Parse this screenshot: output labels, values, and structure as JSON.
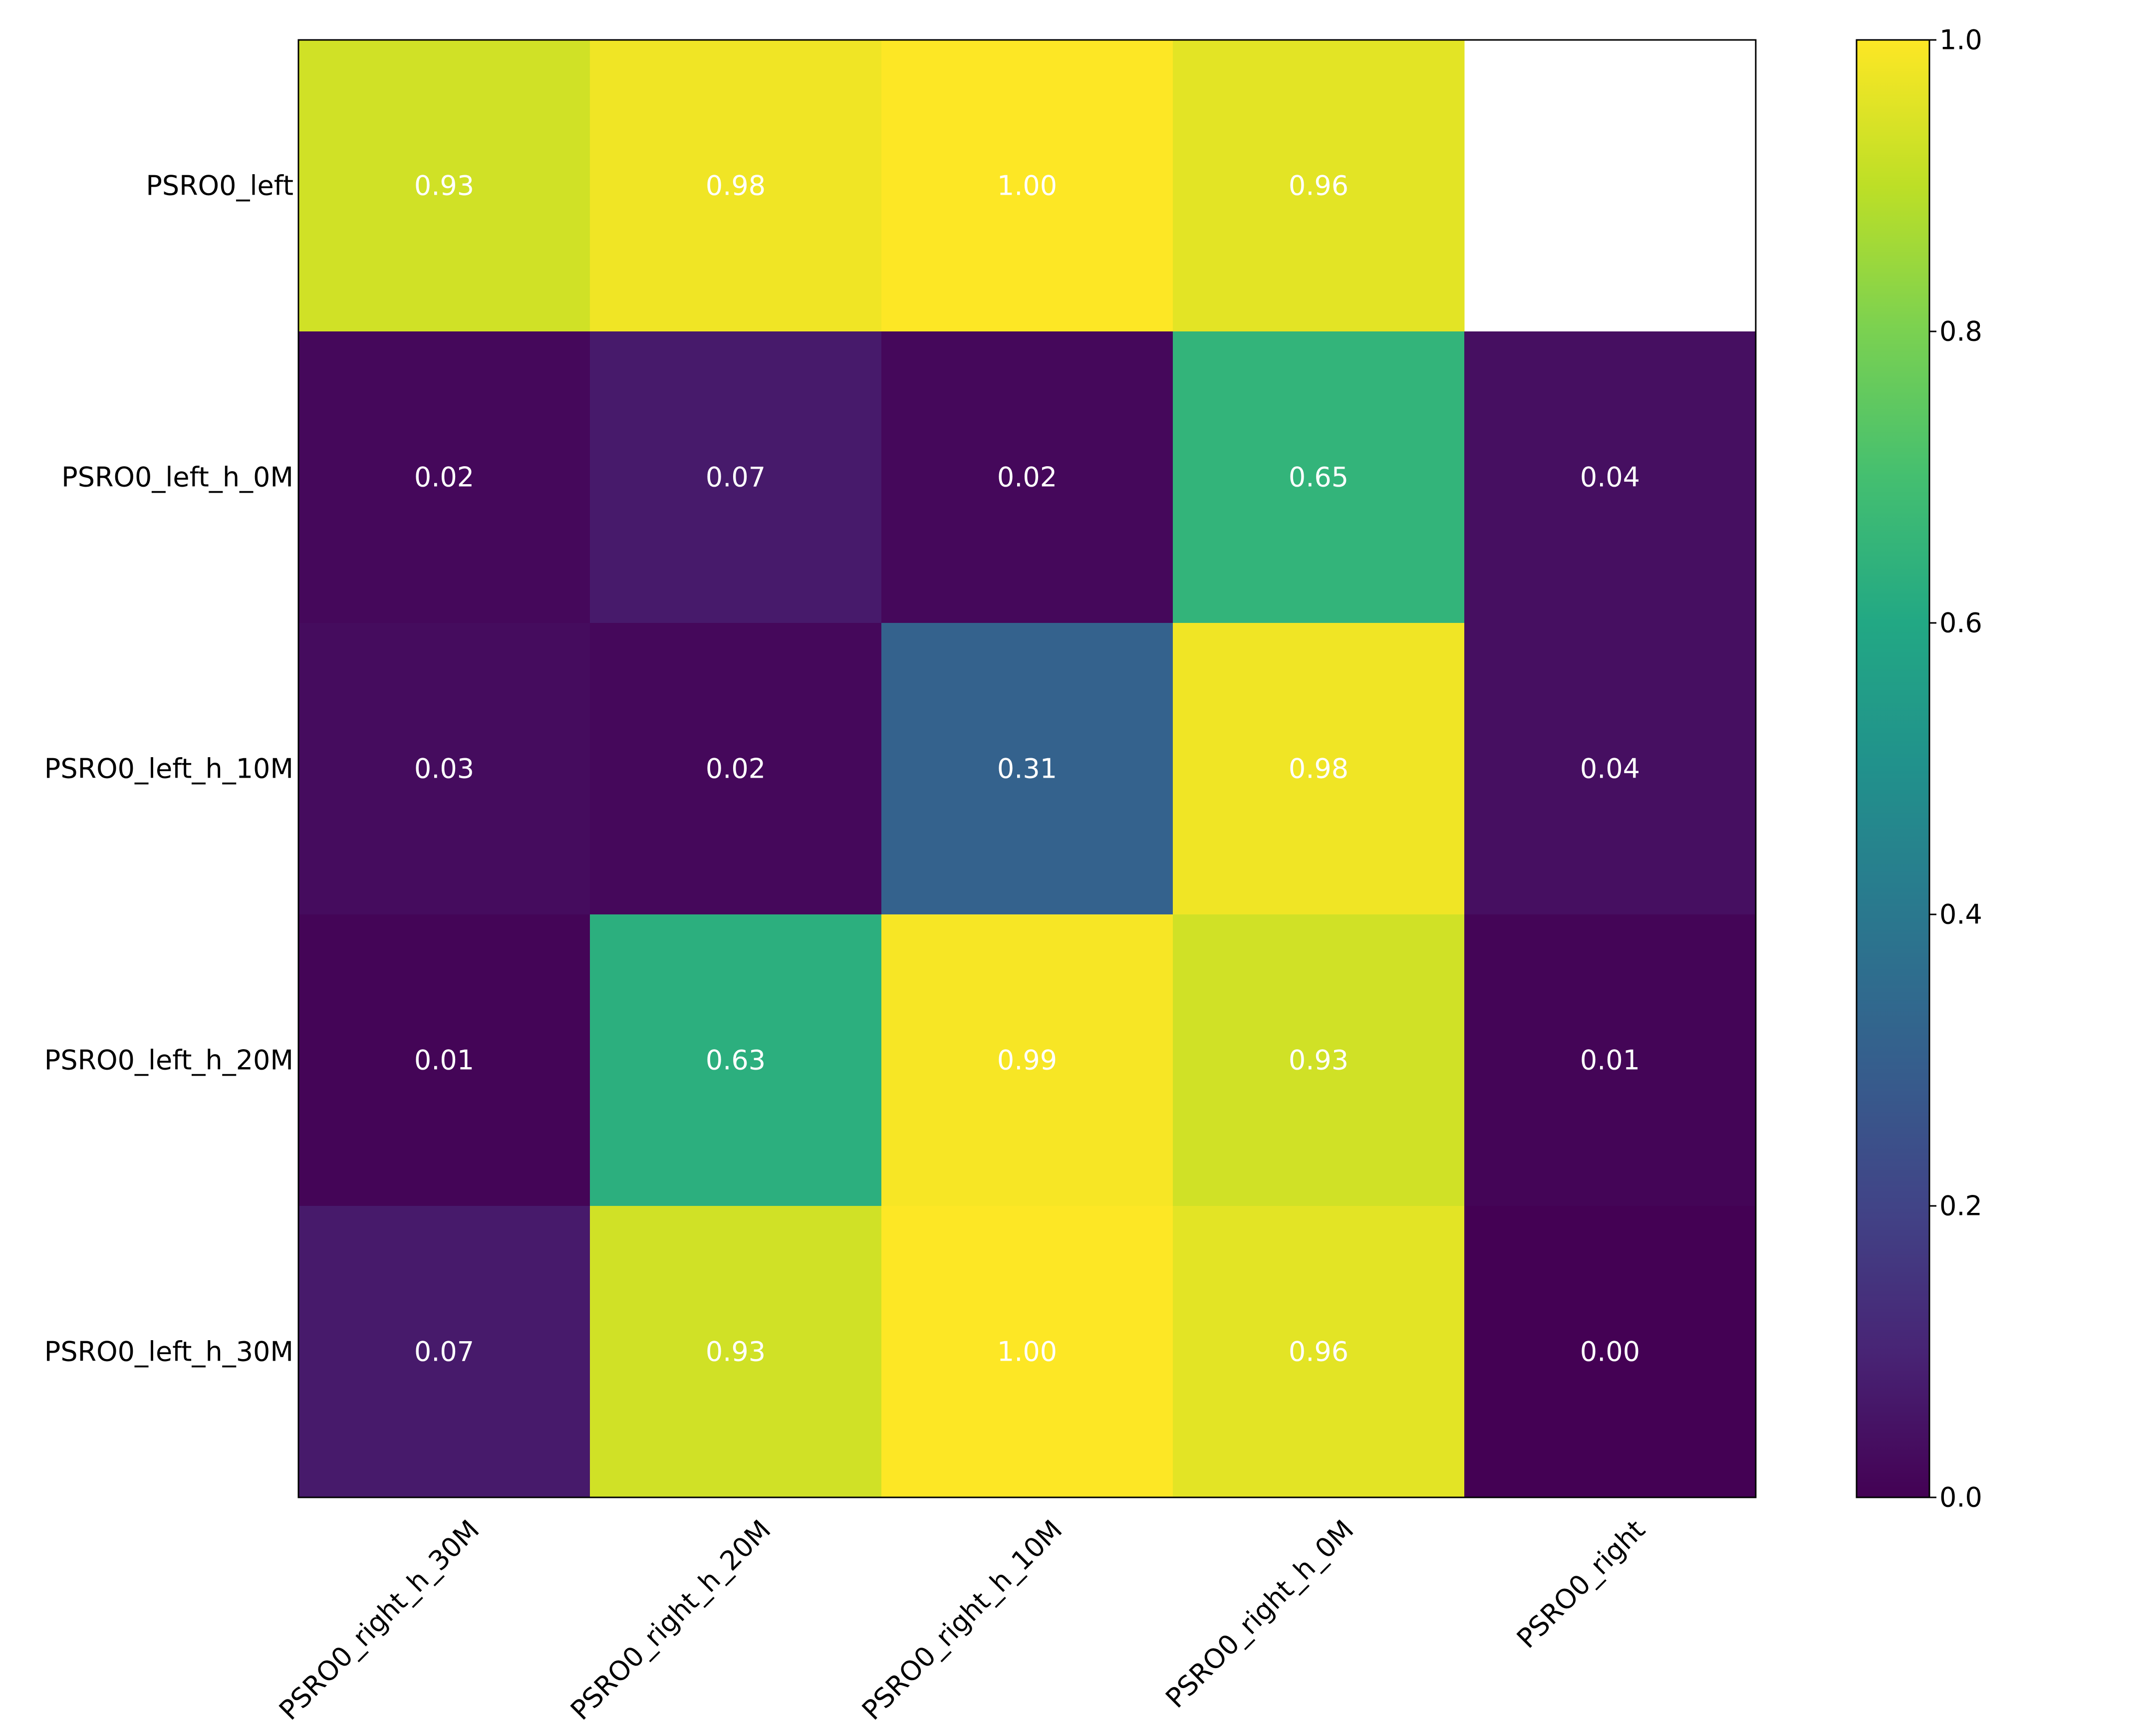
{
  "chart_data": {
    "type": "heatmap",
    "rows": [
      "PSRO0_left",
      "PSRO0_left_h_0M",
      "PSRO0_left_h_10M",
      "PSRO0_left_h_20M",
      "PSRO0_left_h_30M"
    ],
    "columns": [
      "PSRO0_right_h_30M",
      "PSRO0_right_h_20M",
      "PSRO0_right_h_10M",
      "PSRO0_right_h_0M",
      "PSRO0_right"
    ],
    "values": [
      [
        0.93,
        0.98,
        1.0,
        0.96,
        null
      ],
      [
        0.02,
        0.07,
        0.02,
        0.65,
        0.04
      ],
      [
        0.03,
        0.02,
        0.31,
        0.98,
        0.04
      ],
      [
        0.01,
        0.63,
        0.99,
        0.93,
        0.01
      ],
      [
        0.07,
        0.93,
        1.0,
        0.96,
        0.0
      ]
    ],
    "value_format": "0.00",
    "colormap": "viridis",
    "colorbar": {
      "range": [
        0,
        1
      ],
      "ticks": [
        0.0,
        0.2,
        0.4,
        0.6,
        0.8,
        1.0
      ],
      "tick_labels": [
        "0.0",
        "0.2",
        "0.4",
        "0.6",
        "0.8",
        "1.0"
      ]
    },
    "title": "",
    "xlabel": "",
    "ylabel": "",
    "grid": false
  }
}
